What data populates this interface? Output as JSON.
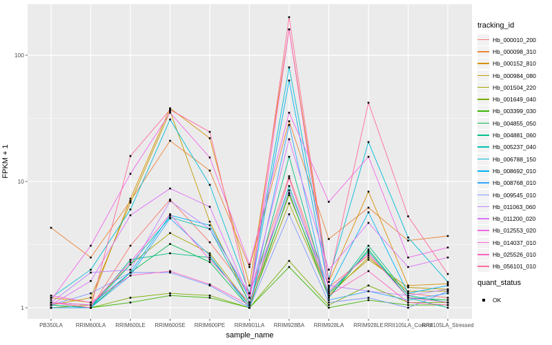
{
  "figure": {
    "x_axis_title": "sample_name",
    "y_axis_title": "FPKM + 1",
    "panel_bg": "#EBEBEB",
    "grid_color": "#FFFFFF",
    "tick_color": "#333333",
    "tick_label_color": "#4D4D4D",
    "point_color": "#000000",
    "legend": {
      "tracking_title": "tracking_id",
      "quant_title": "quant_status",
      "quant_items": [
        {
          "label": "OK"
        }
      ]
    }
  },
  "chart_data": {
    "type": "line",
    "title": "",
    "xlabel": "sample_name",
    "ylabel": "FPKM + 1",
    "y_scale": "log10",
    "ylim": [
      1,
      230
    ],
    "y_ticks": [
      {
        "v": 1,
        "label": "1"
      },
      {
        "v": 10,
        "label": "10"
      },
      {
        "v": 100,
        "label": "100"
      }
    ],
    "y_minor_ticks": [
      3.1623,
      31.623
    ],
    "grid": true,
    "legend_position": "right",
    "categories": [
      "PB350LA",
      "RRIM600LA",
      "RRIM600LE",
      "RRIM600SE",
      "RRIM600PE",
      "RRIM901LA",
      "RRIM928BA",
      "RRIM928LA",
      "RRIM928LE",
      "RRII105LA_Control",
      "RRII105LA_Stressed"
    ],
    "series": [
      {
        "name": "Hb_000010_200",
        "color": "#F8766D",
        "values": [
          1.1,
          1.0,
          3.1,
          7.2,
          3.3,
          1.3,
          11.0,
          1.45,
          2.6,
          1.3,
          1.2
        ]
      },
      {
        "name": "Hb_000098_310",
        "color": "#EB8335",
        "values": [
          4.3,
          2.5,
          7.0,
          21.0,
          12.2,
          2.1,
          30.0,
          3.5,
          6.2,
          3.4,
          3.7
        ]
      },
      {
        "name": "Hb_000152_810",
        "color": "#D89000",
        "values": [
          1.2,
          1.1,
          7.3,
          38.0,
          22.0,
          1.5,
          160.0,
          1.6,
          8.3,
          1.5,
          1.55
        ]
      },
      {
        "name": "Hb_000984_080",
        "color": "#C09B00",
        "values": [
          1.05,
          1.2,
          6.8,
          36.0,
          4.8,
          1.1,
          7.8,
          1.3,
          2.4,
          1.45,
          1.4
        ]
      },
      {
        "name": "Hb_001504_220",
        "color": "#A3A500",
        "values": [
          1.0,
          1.05,
          2.2,
          3.9,
          2.7,
          1.05,
          6.7,
          1.25,
          2.5,
          1.35,
          1.35
        ]
      },
      {
        "name": "Hb_001649_040",
        "color": "#7CAE00",
        "values": [
          1.0,
          1.0,
          1.2,
          1.3,
          1.25,
          1.0,
          2.35,
          1.05,
          1.5,
          1.1,
          1.1
        ]
      },
      {
        "name": "Hb_003399_030",
        "color": "#39B600",
        "values": [
          1.05,
          1.0,
          1.1,
          1.25,
          1.2,
          1.0,
          2.1,
          1.0,
          1.15,
          1.05,
          1.05
        ]
      },
      {
        "name": "Hb_004855_050",
        "color": "#00BB4E",
        "values": [
          1.0,
          1.0,
          1.9,
          3.2,
          2.3,
          1.0,
          8.1,
          1.2,
          2.9,
          1.2,
          1.15
        ]
      },
      {
        "name": "Hb_004881_060",
        "color": "#00C087",
        "values": [
          1.0,
          1.0,
          2.4,
          2.7,
          2.5,
          1.05,
          15.7,
          1.2,
          3.1,
          1.25,
          1.1
        ]
      },
      {
        "name": "Hb_005237_040",
        "color": "#00C0B2",
        "values": [
          1.05,
          1.0,
          2.2,
          5.2,
          4.2,
          1.1,
          9.2,
          1.3,
          2.8,
          1.2,
          1.0
        ]
      },
      {
        "name": "Hb_006788_150",
        "color": "#00BCD8",
        "values": [
          1.2,
          2.0,
          6.0,
          31.0,
          9.4,
          1.3,
          80.0,
          1.7,
          20.5,
          3.6,
          1.6
        ]
      },
      {
        "name": "Hb_008692_010",
        "color": "#00B3F2",
        "values": [
          1.1,
          1.05,
          1.9,
          5.4,
          4.5,
          1.2,
          63.0,
          1.4,
          5.7,
          1.3,
          1.5
        ]
      },
      {
        "name": "Hb_008768_010",
        "color": "#2FA6FF",
        "values": [
          1.0,
          1.0,
          1.8,
          5.1,
          2.6,
          1.0,
          28.0,
          1.15,
          1.35,
          1.15,
          1.3
        ]
      },
      {
        "name": "Hb_009545_010",
        "color": "#7F96FF",
        "values": [
          1.05,
          1.3,
          1.9,
          1.9,
          1.5,
          1.0,
          5.5,
          1.1,
          1.2,
          1.0,
          1.35
        ]
      },
      {
        "name": "Hb_011063_060",
        "color": "#B983FF",
        "values": [
          1.1,
          1.9,
          2.0,
          7.0,
          4.2,
          1.3,
          8.5,
          1.5,
          1.35,
          1.25,
          1.4
        ]
      },
      {
        "name": "Hb_011200_020",
        "color": "#DC71FA",
        "values": [
          1.05,
          1.63,
          5.4,
          8.8,
          6.3,
          1.2,
          21.6,
          2.0,
          4.7,
          2.1,
          2.5
        ]
      },
      {
        "name": "Hb_012553_020",
        "color": "#F166E8",
        "values": [
          1.15,
          3.1,
          11.5,
          35.0,
          15.5,
          2.2,
          35.0,
          6.9,
          15.7,
          2.5,
          3.0
        ]
      },
      {
        "name": "Hb_014037_010",
        "color": "#FC61D5",
        "values": [
          1.1,
          1.05,
          2.3,
          5.5,
          2.4,
          1.1,
          160.0,
          1.35,
          2.7,
          1.2,
          1.1
        ]
      },
      {
        "name": "Hb_025526_010",
        "color": "#FF62BF",
        "values": [
          1.25,
          1.1,
          1.8,
          1.95,
          1.53,
          1.05,
          10.6,
          1.25,
          1.95,
          1.1,
          1.05
        ]
      },
      {
        "name": "Hb_056101_010",
        "color": "#FF6A9A",
        "values": [
          1.1,
          1.0,
          15.9,
          37.0,
          24.7,
          1.2,
          200.0,
          1.6,
          42.0,
          5.3,
          1.85
        ]
      }
    ]
  }
}
